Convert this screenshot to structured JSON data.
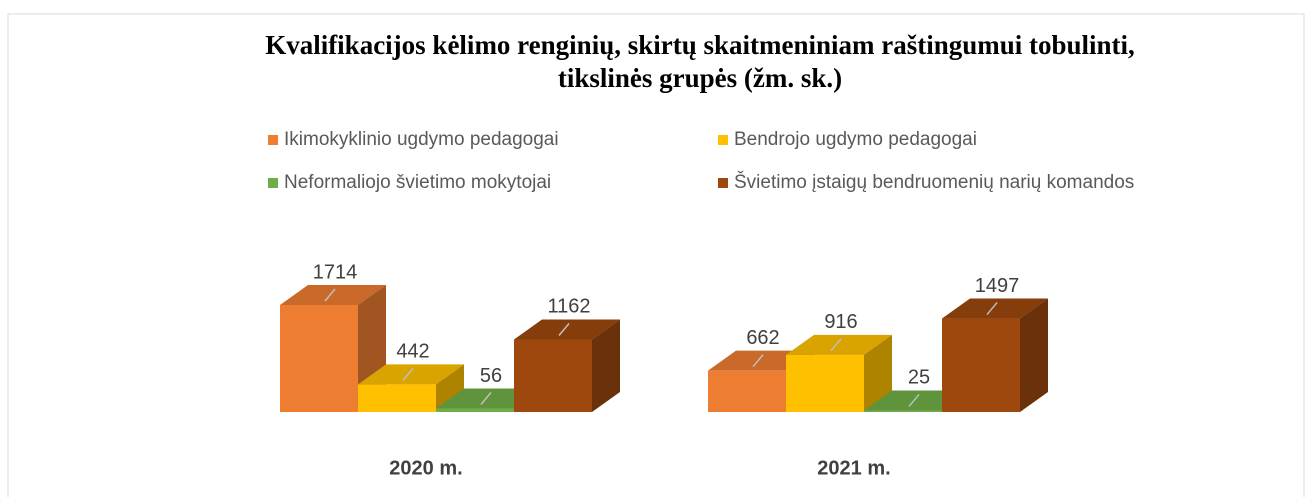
{
  "chart_data": {
    "type": "bar3d",
    "title": [
      "Kvalifikacijos kėlimo renginių, skirtų skaitmeniniam raštingumui tobulinti,",
      "tikslinės grupės (žm. sk.)"
    ],
    "categories": [
      "2020 m.",
      "2021 m."
    ],
    "series": [
      {
        "name": "Ikimokyklinio ugdymo pedagogai",
        "color": "#ED7D31",
        "values": [
          1714,
          662
        ]
      },
      {
        "name": "Bendrojo ugdymo pedagogai",
        "color": "#FFC000",
        "values": [
          442,
          916
        ]
      },
      {
        "name": "Neformaliojo švietimo mokytojai",
        "color": "#70AD47",
        "values": [
          56,
          25
        ]
      },
      {
        "name": "Švietimo įstaigų bendruomenių narių komandos",
        "color": "#9E480E",
        "values": [
          1162,
          1497
        ]
      }
    ]
  }
}
